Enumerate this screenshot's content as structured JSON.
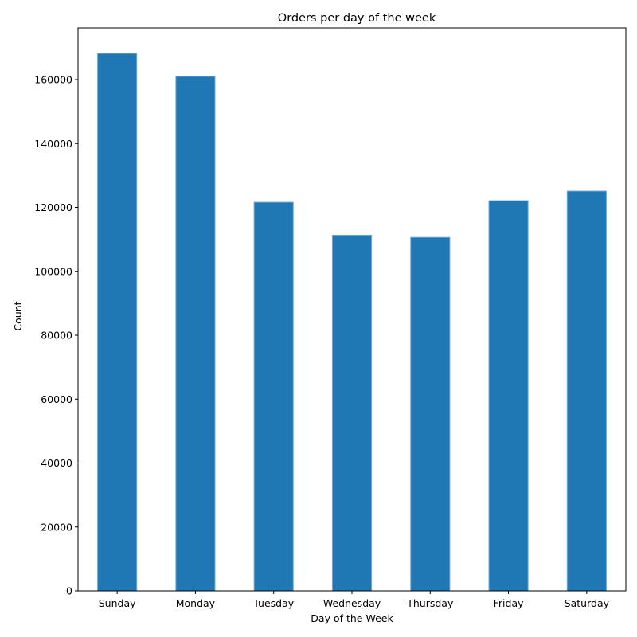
{
  "chart_data": {
    "type": "bar",
    "title": "Orders per day of the week",
    "xlabel": "Day of the Week",
    "ylabel": "Count",
    "categories": [
      "Sunday",
      "Monday",
      "Tuesday",
      "Wednesday",
      "Thursday",
      "Friday",
      "Saturday"
    ],
    "values": [
      168200,
      161000,
      121600,
      111300,
      110600,
      122100,
      125100
    ],
    "ylim": [
      0,
      176200
    ],
    "yticks": [
      0,
      20000,
      40000,
      60000,
      80000,
      100000,
      120000,
      140000,
      160000
    ],
    "ytick_labels": [
      "0",
      "20000",
      "40000",
      "60000",
      "80000",
      "100000",
      "120000",
      "140000",
      "160000"
    ],
    "bar_color": "#1f77b4",
    "bar_edge_color": "#6fa8dc",
    "grid": false,
    "legend": "none"
  }
}
